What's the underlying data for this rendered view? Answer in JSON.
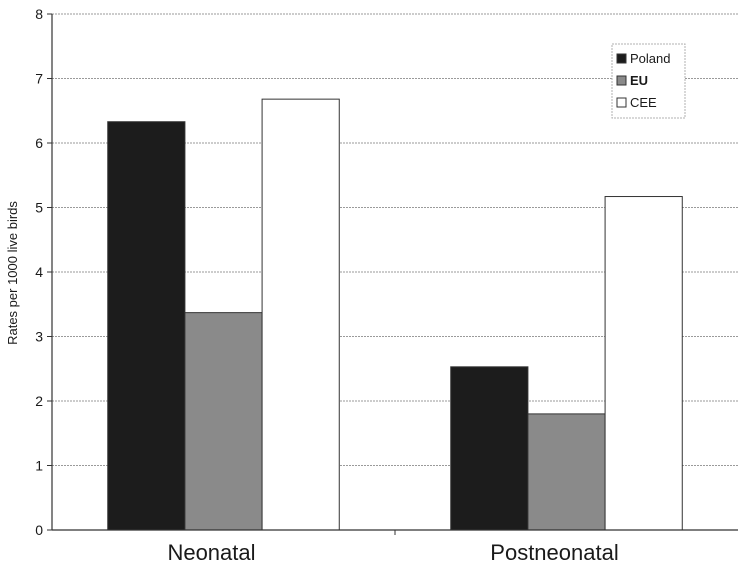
{
  "chart_data": {
    "type": "bar",
    "title": "",
    "xlabel": "",
    "ylabel": "Rates per 1000 live birds",
    "ylim": [
      0,
      8
    ],
    "yticks": [
      0,
      1,
      2,
      3,
      4,
      5,
      6,
      7,
      8
    ],
    "grid": true,
    "legend_position": "top-right",
    "categories": [
      "Neonatal",
      "Postneonatal"
    ],
    "series": [
      {
        "name": "Poland",
        "values": [
          6.33,
          2.53
        ],
        "color": "#1c1c1c"
      },
      {
        "name": "EU",
        "values": [
          3.37,
          1.8
        ],
        "color": "#8a8a8a"
      },
      {
        "name": "CEE",
        "values": [
          6.68,
          5.17
        ],
        "color": "#ffffff"
      }
    ]
  }
}
